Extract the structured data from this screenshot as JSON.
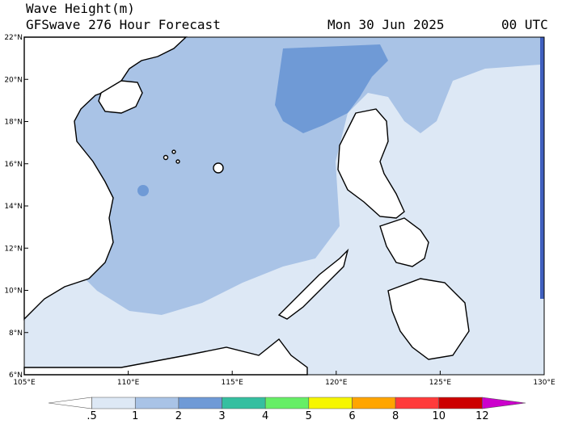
{
  "header": {
    "variable": "Wave Height(m)",
    "model": "GFSwave 276 Hour Forecast",
    "date": "Mon 30 Jun 2025",
    "time": "00 UTC"
  },
  "map": {
    "lon_range": [
      105,
      130
    ],
    "lat_range": [
      6,
      22
    ],
    "lon_ticks": [
      "105°E",
      "110°E",
      "115°E",
      "120°E",
      "125°E",
      "130°E"
    ],
    "lat_ticks": [
      "6°N",
      "8°N",
      "10°N",
      "12°N",
      "14°N",
      "16°N",
      "18°N",
      "20°N",
      "22°N"
    ],
    "region": "South China Sea",
    "land_color": "#ffffff",
    "coastline_color": "#000000"
  },
  "legend": {
    "labels": [
      ".5",
      "1",
      "2",
      "3",
      "4",
      "5",
      "6",
      "8",
      "10",
      "12"
    ],
    "colors": [
      "#ffffff",
      "#dde8f5",
      "#a9c3e6",
      "#6f9ad6",
      "#35bfa0",
      "#66ee66",
      "#f6f600",
      "#ffa500",
      "#ff3b3b",
      "#cc0000",
      "#cc00cc"
    ]
  }
}
